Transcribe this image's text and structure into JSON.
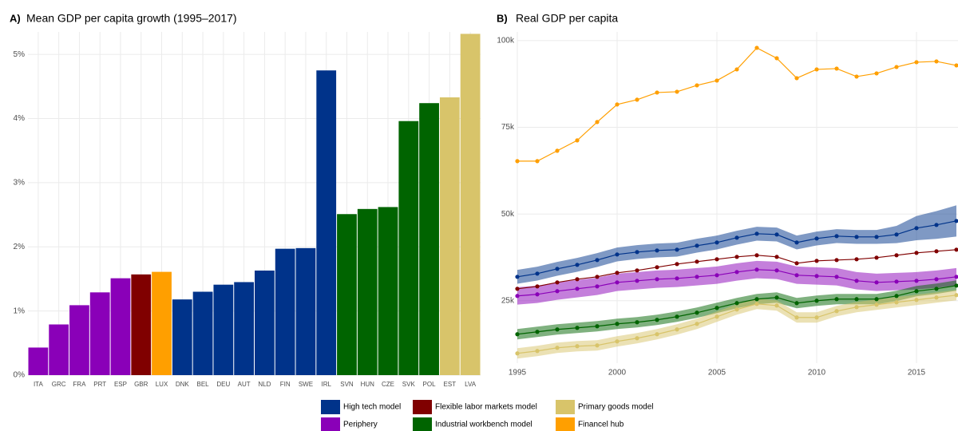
{
  "chart_data": [
    {
      "type": "bar",
      "panel": "A)",
      "title": "Mean GDP per capita growth (1995–2017)",
      "categories": [
        "ITA",
        "GRC",
        "FRA",
        "PRT",
        "ESP",
        "GBR",
        "LUX",
        "DNK",
        "BEL",
        "DEU",
        "AUT",
        "NLD",
        "FIN",
        "SWE",
        "IRL",
        "SVN",
        "HUN",
        "CZE",
        "SVK",
        "POL",
        "EST",
        "LVA"
      ],
      "values": [
        0.43,
        0.79,
        1.09,
        1.29,
        1.51,
        1.57,
        1.61,
        1.18,
        1.3,
        1.41,
        1.45,
        1.63,
        1.97,
        1.98,
        4.75,
        2.51,
        2.59,
        2.62,
        3.96,
        4.24,
        4.33,
        5.32
      ],
      "colors": [
        "#8a00b8",
        "#8a00b8",
        "#8a00b8",
        "#8a00b8",
        "#8a00b8",
        "#800000",
        "#ff9f00",
        "#00338a",
        "#00338a",
        "#00338a",
        "#00338a",
        "#00338a",
        "#00338a",
        "#00338a",
        "#00338a",
        "#006400",
        "#006400",
        "#006400",
        "#006400",
        "#006400",
        "#d8c46a",
        "#d8c46a"
      ],
      "ylim": [
        0,
        5.35
      ],
      "yticks": [
        {
          "value": 0,
          "label": "0%"
        },
        {
          "value": 1,
          "label": "1%"
        },
        {
          "value": 2,
          "label": "2%"
        },
        {
          "value": 3,
          "label": "3%"
        },
        {
          "value": 4,
          "label": "4%"
        },
        {
          "value": 5,
          "label": "5%"
        }
      ],
      "grid": true
    },
    {
      "type": "line",
      "panel": "B)",
      "title": "Real GDP per capita",
      "x": [
        1995,
        1996,
        1997,
        1998,
        1999,
        2000,
        2001,
        2002,
        2003,
        2004,
        2005,
        2006,
        2007,
        2008,
        2009,
        2010,
        2011,
        2012,
        2013,
        2014,
        2015,
        2016,
        2017
      ],
      "xlim": [
        1995,
        2017
      ],
      "xticks": [
        1995,
        2000,
        2005,
        2010,
        2015
      ],
      "ylim": [
        7000,
        102500
      ],
      "yticks": [
        {
          "value": 25000,
          "label": "25k"
        },
        {
          "value": 50000,
          "label": "50k"
        },
        {
          "value": 75000,
          "label": "75k"
        },
        {
          "value": 100000,
          "label": "100k"
        }
      ],
      "grid": true,
      "legend": "bottom",
      "series": [
        {
          "name": "High tech model",
          "color": "#00338a",
          "values": [
            31900,
            32820,
            34200,
            35350,
            36730,
            38340,
            39030,
            39490,
            39720,
            40870,
            41790,
            43170,
            44320,
            44090,
            41790,
            42940,
            43630,
            43400,
            43400,
            44090,
            45930,
            46850,
            48000
          ],
          "lower": [
            29900,
            30820,
            32200,
            33350,
            34730,
            36340,
            37030,
            37490,
            37720,
            38870,
            39790,
            41170,
            42320,
            42090,
            39790,
            40940,
            41630,
            41400,
            41400,
            41590,
            42430,
            42850,
            43500
          ],
          "upper": [
            33900,
            34820,
            36200,
            37350,
            38730,
            40340,
            41030,
            41490,
            41720,
            42870,
            43790,
            45170,
            46320,
            46090,
            43790,
            44940,
            45630,
            45400,
            45400,
            46590,
            49430,
            50850,
            52500
          ]
        },
        {
          "name": "Periphery",
          "color": "#8a00b8",
          "values": [
            26380,
            26840,
            27760,
            28450,
            29140,
            30290,
            30750,
            31210,
            31440,
            31900,
            32360,
            33280,
            33970,
            33740,
            32360,
            32130,
            31900,
            30750,
            30290,
            30520,
            30750,
            31210,
            31900
          ],
          "lower": [
            23880,
            24340,
            25260,
            25950,
            26640,
            27790,
            28250,
            28710,
            28940,
            29400,
            29860,
            30780,
            31470,
            31240,
            29860,
            29630,
            29400,
            28250,
            27790,
            28020,
            28250,
            28710,
            29400
          ],
          "upper": [
            28880,
            29340,
            30260,
            30950,
            31640,
            32790,
            33250,
            33710,
            33940,
            34400,
            34860,
            35780,
            36470,
            36240,
            34860,
            34630,
            34400,
            33250,
            32790,
            33020,
            33250,
            33710,
            34400
          ]
        },
        {
          "name": "Flexible labor markets model",
          "color": "#800000",
          "values": [
            28450,
            29140,
            30290,
            31210,
            31900,
            33050,
            33740,
            34660,
            35580,
            36270,
            36960,
            37650,
            38110,
            37650,
            35810,
            36500,
            36730,
            36960,
            37420,
            38110,
            38800,
            39260,
            39720
          ]
        },
        {
          "name": "Industrial workbench model",
          "color": "#006400",
          "values": [
            15340,
            16030,
            16720,
            17180,
            17640,
            18330,
            18790,
            19480,
            20400,
            21550,
            22930,
            24310,
            25460,
            25920,
            24310,
            25000,
            25460,
            25460,
            25460,
            26380,
            27760,
            28450,
            29370
          ],
          "lower": [
            13840,
            14530,
            15220,
            15680,
            16140,
            16830,
            17290,
            17980,
            18900,
            20050,
            21430,
            22810,
            23960,
            24420,
            22810,
            23500,
            23960,
            23960,
            23960,
            24880,
            26260,
            26950,
            27870
          ],
          "upper": [
            16840,
            17530,
            18220,
            18680,
            19140,
            19830,
            20290,
            20980,
            21900,
            23050,
            24430,
            25810,
            26960,
            27420,
            25810,
            26500,
            26960,
            26960,
            26960,
            27880,
            29260,
            29950,
            30870
          ]
        },
        {
          "name": "Primary goods model",
          "color": "#d8c46a",
          "values": [
            9820,
            10510,
            11430,
            11890,
            12120,
            13270,
            14190,
            15340,
            16720,
            18330,
            20400,
            22470,
            24080,
            23620,
            20170,
            20170,
            22010,
            23160,
            23850,
            24540,
            25230,
            25920,
            26610
          ],
          "lower": [
            8320,
            9010,
            9930,
            10390,
            10620,
            11770,
            12690,
            13840,
            15220,
            16830,
            18900,
            20970,
            22580,
            22120,
            18670,
            18670,
            20510,
            21660,
            22350,
            23040,
            23730,
            24420,
            25110
          ],
          "upper": [
            11320,
            12010,
            12930,
            13390,
            13620,
            14770,
            15690,
            16840,
            18220,
            19830,
            21900,
            23970,
            25580,
            25120,
            21670,
            21670,
            23510,
            24660,
            25350,
            26040,
            26730,
            27420,
            28110
          ]
        },
        {
          "name": "Financel hub",
          "color": "#ff9f00",
          "values": [
            65250,
            65250,
            68240,
            71230,
            76520,
            81580,
            82960,
            85030,
            85260,
            87100,
            88480,
            91700,
            97910,
            94920,
            89170,
            91700,
            91930,
            89630,
            90550,
            92390,
            93770,
            94000,
            92850
          ]
        }
      ]
    }
  ]
}
